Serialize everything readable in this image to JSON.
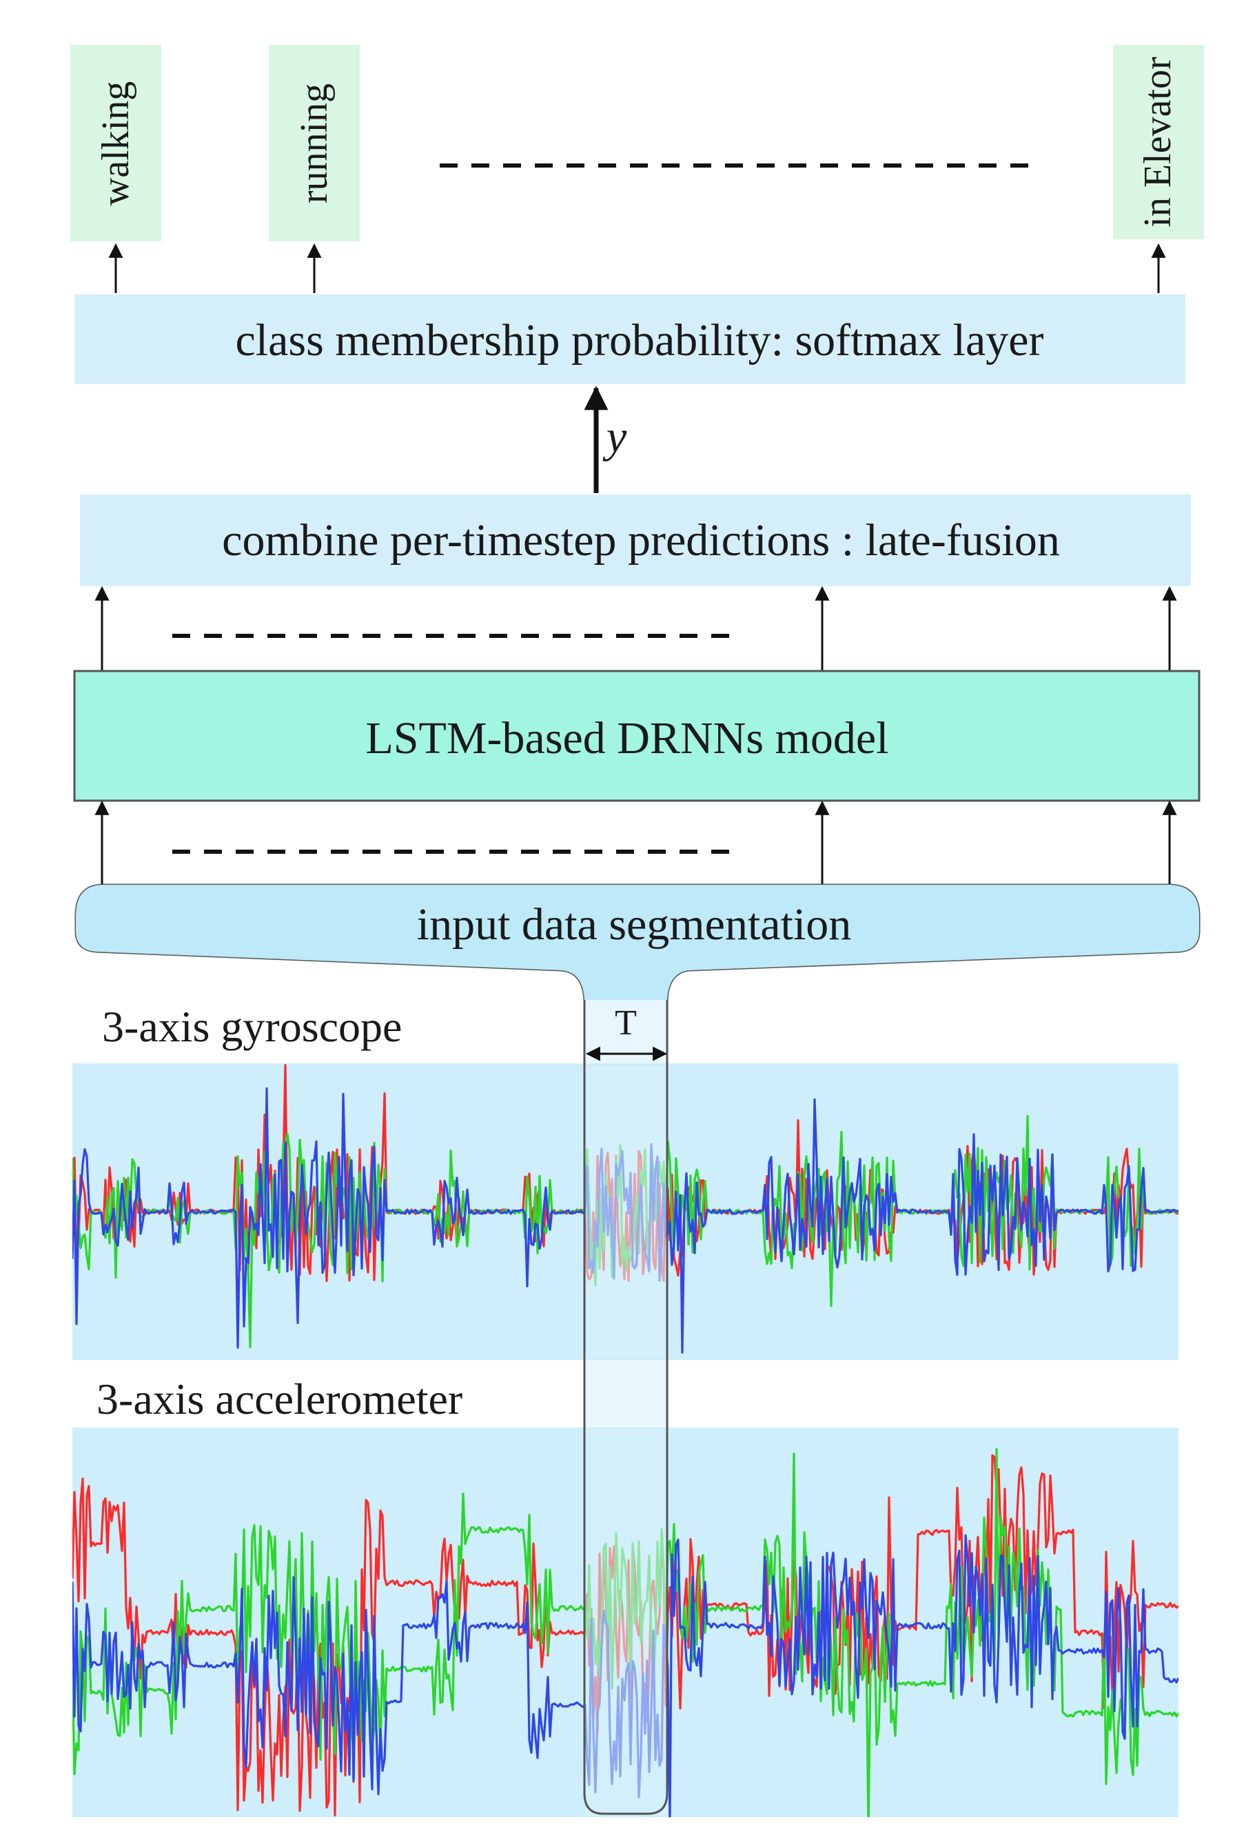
{
  "output_classes": [
    "walking",
    "running",
    "in Elevator"
  ],
  "softmax_label": "class membership probability: softmax layer",
  "y_symbol": "y",
  "fusion_label": "combine per-timestep predictions : late-fusion",
  "model_label": "LSTM-based DRNNs model",
  "segmentation_label": "input data segmentation",
  "window_label": "T",
  "gyroscope_label": "3-axis gyroscope",
  "accelerometer_label": "3-axis accelerometer",
  "colors": {
    "class_box": "#d9f5e3",
    "layer_box": "#d5effa",
    "model_box": "#a1f5e1",
    "signal_panel": "#cdeefa",
    "axis_x": "#ff2a2a",
    "axis_y": "#2bd62b",
    "axis_z": "#2f47e8"
  },
  "signal_series": [
    "x-axis",
    "y-axis",
    "z-axis"
  ]
}
